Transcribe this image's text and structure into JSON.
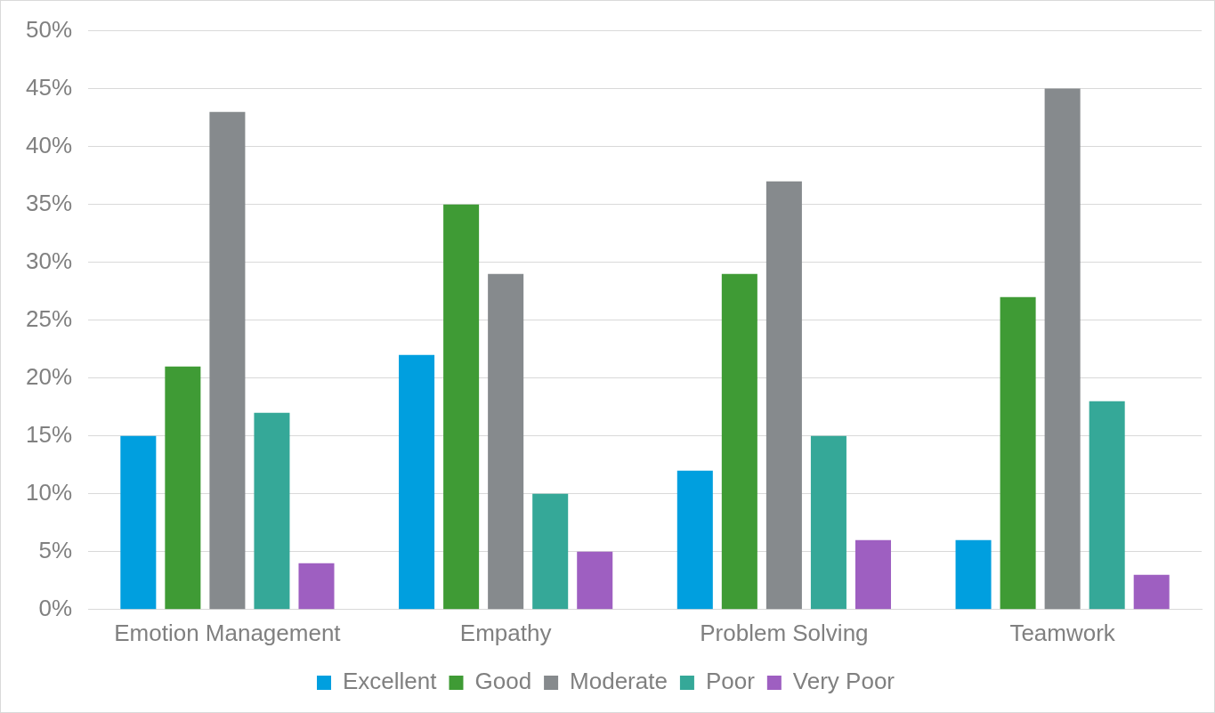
{
  "chart_data": {
    "type": "bar",
    "categories": [
      "Emotion Management",
      "Empathy",
      "Problem Solving",
      "Teamwork"
    ],
    "series": [
      {
        "name": "Excellent",
        "color": "#009fdf",
        "values": [
          15,
          22,
          12,
          6
        ]
      },
      {
        "name": "Good",
        "color": "#3f9b35",
        "values": [
          21,
          35,
          29,
          27
        ]
      },
      {
        "name": "Moderate",
        "color": "#868a8d",
        "values": [
          43,
          29,
          37,
          45
        ]
      },
      {
        "name": "Poor",
        "color": "#35a898",
        "values": [
          17,
          10,
          15,
          18
        ]
      },
      {
        "name": "Very Poor",
        "color": "#9e5fc1",
        "values": [
          4,
          5,
          6,
          3
        ]
      }
    ],
    "ylim": [
      0,
      50
    ],
    "yticks": [
      {
        "value": 0,
        "label": "0%"
      },
      {
        "value": 5,
        "label": "5%"
      },
      {
        "value": 10,
        "label": "10%"
      },
      {
        "value": 15,
        "label": "15%"
      },
      {
        "value": 20,
        "label": "20%"
      },
      {
        "value": 25,
        "label": "25%"
      },
      {
        "value": 30,
        "label": "30%"
      },
      {
        "value": 35,
        "label": "35%"
      },
      {
        "value": 40,
        "label": "40%"
      },
      {
        "value": 45,
        "label": "45%"
      },
      {
        "value": 50,
        "label": "50%"
      }
    ],
    "grid": "y",
    "legend": "bottom"
  }
}
